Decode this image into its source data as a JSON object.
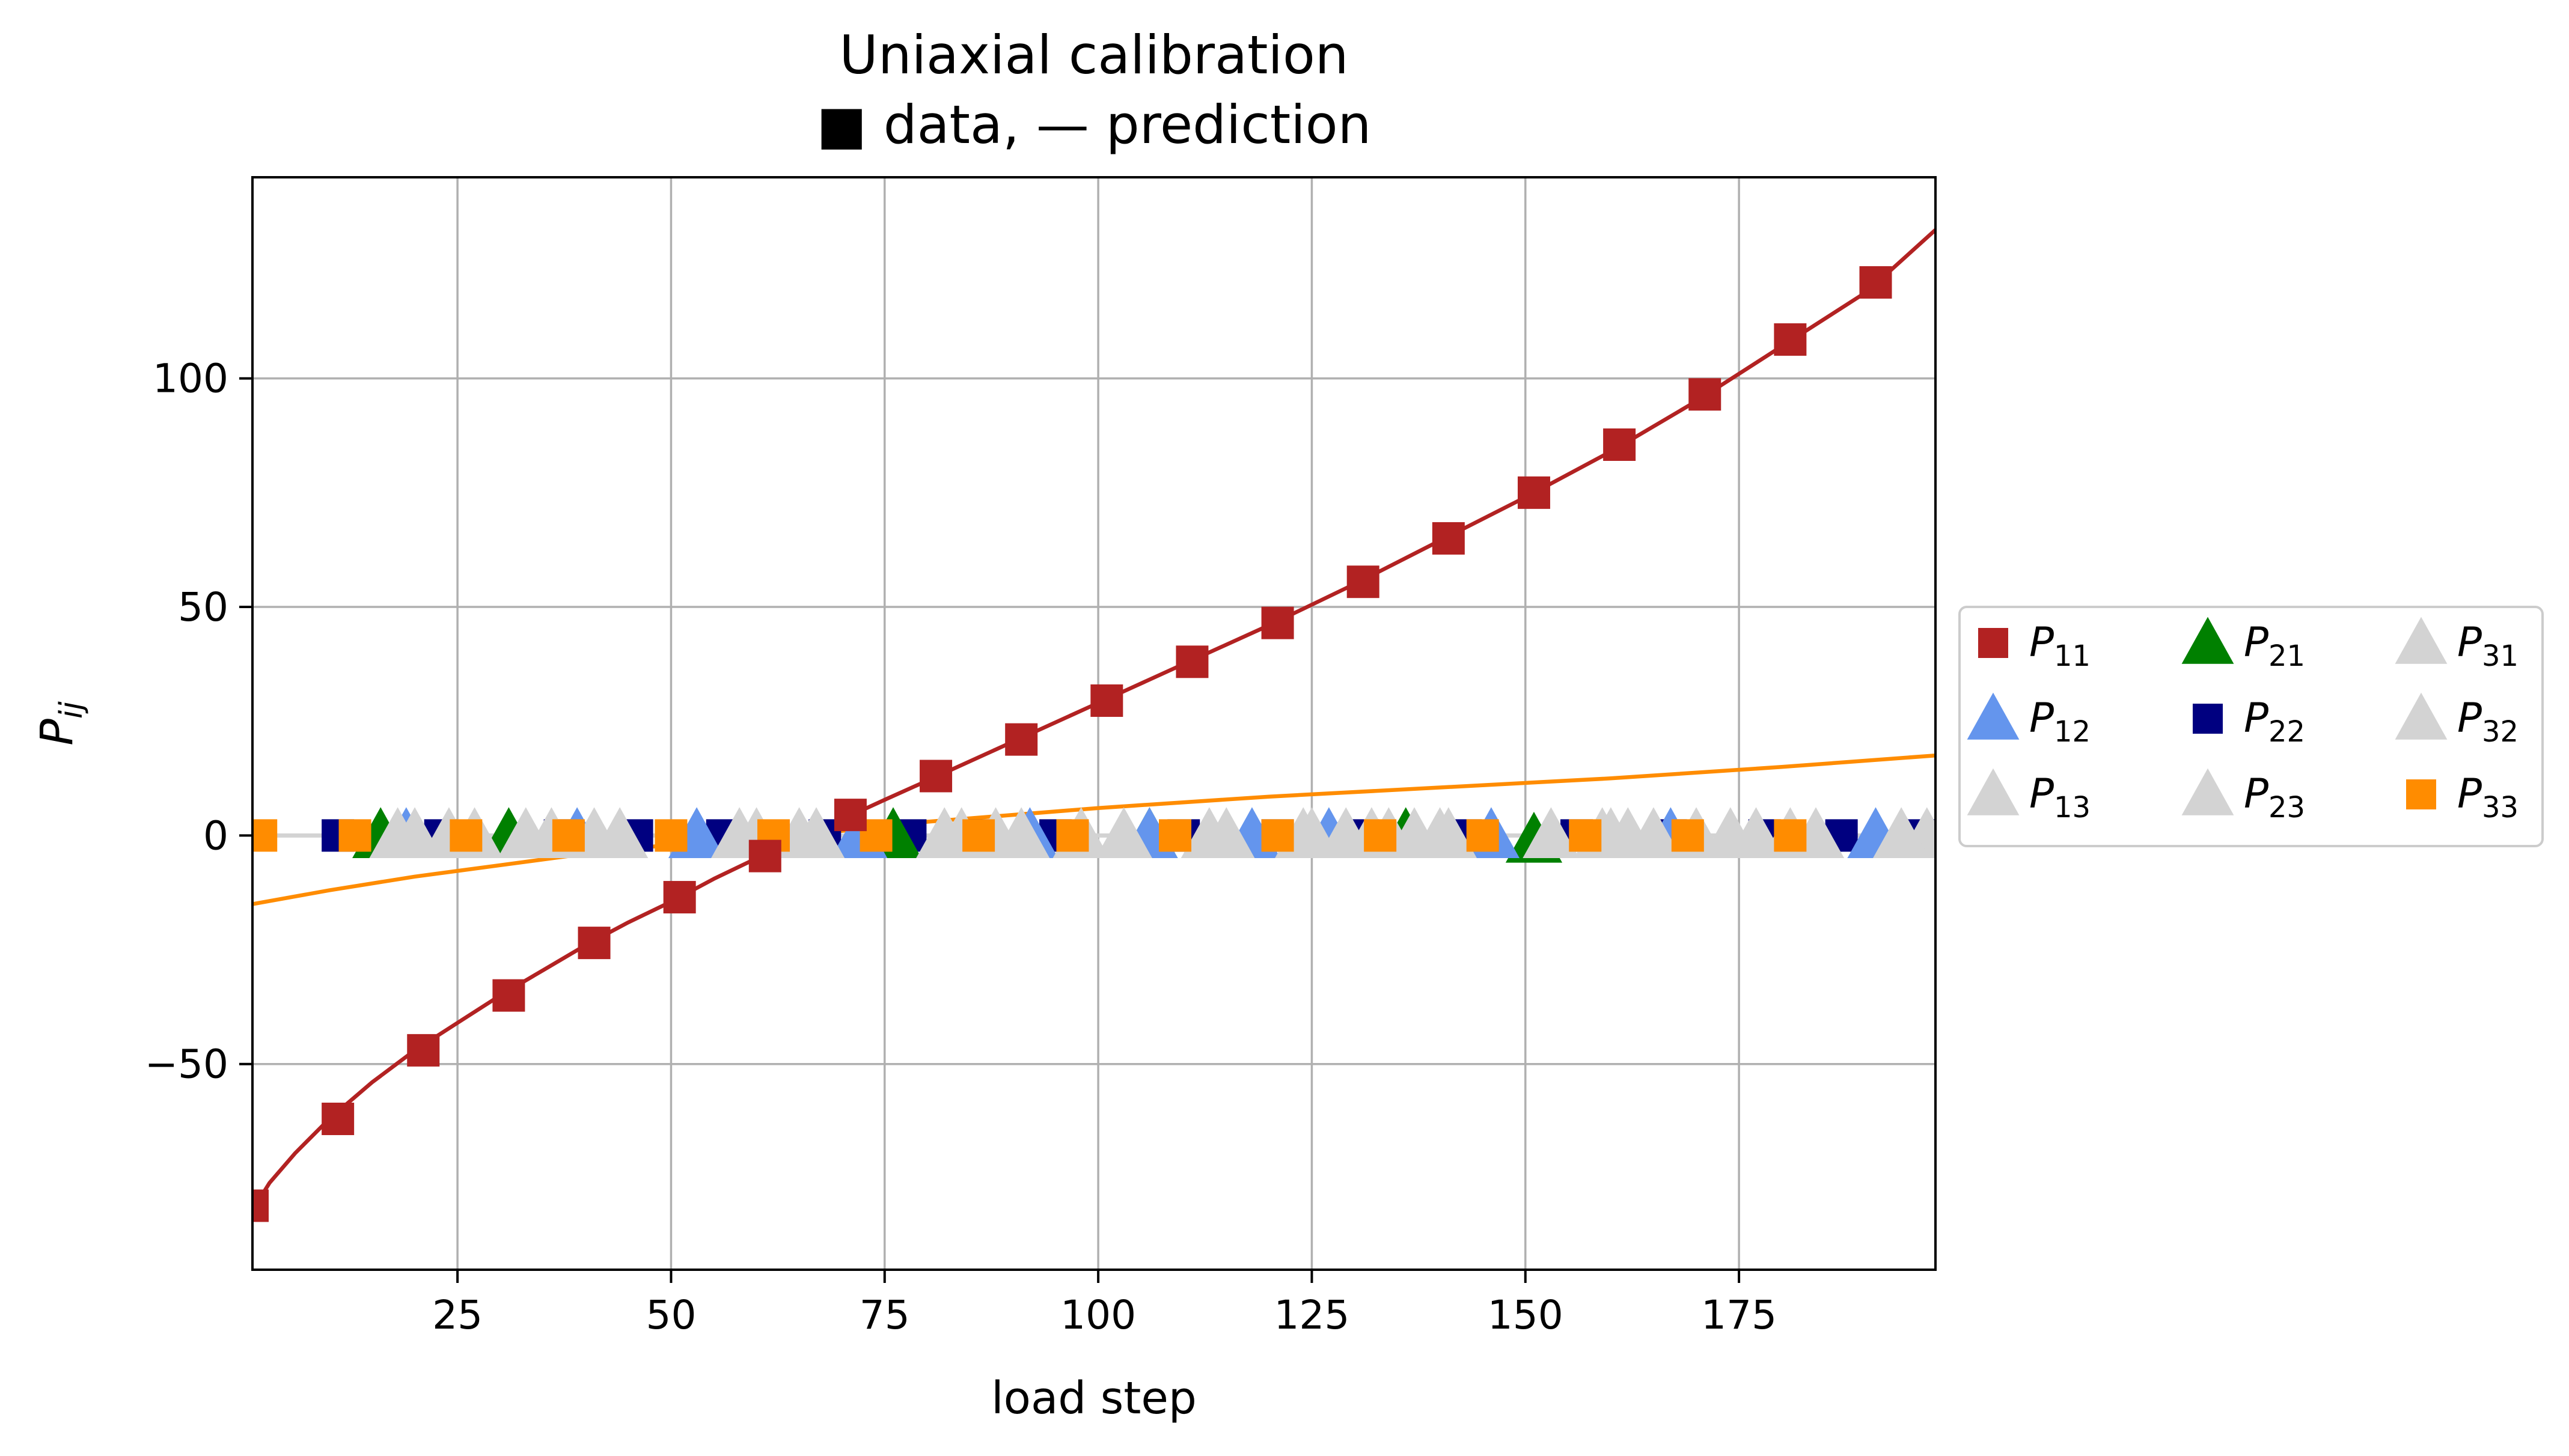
{
  "chart_data": {
    "type": "scatter",
    "title": "Uniaxial calibration",
    "subtitle": "■ data, — prediction",
    "xlabel": "load step",
    "ylabel_base": "P",
    "ylabel_sub": "ij",
    "xlim": [
      1,
      198
    ],
    "ylim": [
      -95,
      144
    ],
    "xticks": [
      25,
      50,
      75,
      100,
      125,
      150,
      175
    ],
    "yticks": [
      -50,
      0,
      50,
      100
    ],
    "xtick_labels": [
      "25",
      "50",
      "75",
      "100",
      "125",
      "150",
      "175"
    ],
    "ytick_labels": [
      "−50",
      "0",
      "50",
      "100"
    ],
    "grid": true,
    "legend_placement": "right",
    "series": [
      {
        "id": "p11",
        "base": "P",
        "sub": "11",
        "marker": "square",
        "color": "#b22222",
        "x": [
          1,
          11,
          21,
          31,
          41,
          51,
          61,
          71,
          81,
          91,
          101,
          111,
          121,
          131,
          141,
          151,
          161,
          171,
          181,
          191
        ],
        "y": [
          -81,
          -62,
          -47,
          -35,
          -23.5,
          -13.5,
          -4.5,
          4.5,
          13,
          21,
          29.5,
          38,
          46.5,
          55.5,
          65,
          75,
          85.5,
          96.5,
          108.5,
          121
        ]
      },
      {
        "id": "p12",
        "base": "P",
        "sub": "12",
        "marker": "triangle-up",
        "color": "#6495ed",
        "x": [
          19,
          39,
          53,
          72,
          92,
          106,
          118,
          127,
          146,
          167,
          191
        ],
        "y": [
          0,
          0,
          0,
          0,
          0,
          0,
          0,
          0,
          0,
          0,
          0
        ]
      },
      {
        "id": "p13",
        "base": "P",
        "sub": "13",
        "marker": "triangle-up",
        "color": "#d3d3d3",
        "x": [
          24,
          36,
          60,
          82,
          103,
          124,
          132,
          140,
          162,
          177,
          194
        ],
        "y": [
          0,
          0,
          0,
          0,
          0,
          0,
          0,
          0,
          0,
          0,
          0
        ]
      },
      {
        "id": "p21",
        "base": "P",
        "sub": "21",
        "marker": "triangle-up",
        "color": "#008000",
        "x": [
          16,
          31,
          76,
          106,
          136,
          151
        ],
        "y": [
          0,
          0,
          0,
          0,
          0,
          -1
        ]
      },
      {
        "id": "p22",
        "base": "P",
        "sub": "22",
        "marker": "square",
        "color": "#000080",
        "x": [
          11,
          23,
          37,
          46,
          56,
          68,
          78,
          86,
          95,
          110,
          121,
          131,
          143,
          156,
          167,
          178,
          187,
          196
        ],
        "y": [
          0,
          0,
          0,
          0,
          0,
          0,
          0,
          0,
          0,
          0,
          0,
          0,
          0,
          0,
          0,
          0,
          0,
          0
        ]
      },
      {
        "id": "p23",
        "base": "P",
        "sub": "23",
        "marker": "triangle-up",
        "color": "#d3d3d3",
        "x": [
          27,
          41,
          65,
          88,
          113,
          129,
          137,
          159,
          170,
          184
        ],
        "y": [
          0,
          0,
          0,
          0,
          0,
          0,
          0,
          0,
          0,
          0
        ]
      },
      {
        "id": "p31",
        "base": "P",
        "sub": "31",
        "marker": "triangle-up",
        "color": "#d3d3d3",
        "x": [
          18,
          44,
          67,
          91,
          115,
          134,
          153,
          165,
          181,
          197
        ],
        "y": [
          0,
          0,
          0,
          0,
          0,
          0,
          0,
          0,
          0,
          0
        ]
      },
      {
        "id": "p32",
        "base": "P",
        "sub": "32",
        "marker": "triangle-up",
        "color": "#d3d3d3",
        "x": [
          20,
          33,
          58,
          84,
          98,
          125,
          141,
          160,
          174
        ],
        "y": [
          0,
          0,
          0,
          0,
          0,
          0,
          0,
          0,
          0
        ]
      },
      {
        "id": "p33",
        "base": "P",
        "sub": "33",
        "marker": "square",
        "color": "#ff8c00",
        "x": [
          2,
          13,
          26,
          38,
          50,
          62,
          74,
          86,
          97,
          109,
          121,
          133,
          145,
          157,
          169,
          181
        ],
        "y": [
          0,
          0,
          0,
          0,
          0,
          0,
          0,
          0,
          0,
          0,
          0,
          0,
          0,
          0,
          0,
          0
        ]
      }
    ],
    "prediction_lines": [
      {
        "id": "p11-prediction",
        "color": "#b22222",
        "x": [
          1,
          3,
          6,
          10,
          15,
          20,
          25,
          30,
          35,
          40,
          45,
          50,
          55,
          60,
          65,
          70,
          75,
          80,
          90,
          100,
          110,
          120,
          130,
          140,
          150,
          160,
          170,
          180,
          190,
          198
        ],
        "y": [
          -82,
          -76,
          -69.5,
          -62,
          -54,
          -47,
          -41,
          -35,
          -29.5,
          -24,
          -19,
          -14.5,
          -9.5,
          -5,
          -0.8,
          3.5,
          7.8,
          12,
          20.5,
          29,
          37.5,
          46,
          55,
          64.5,
          74,
          84,
          95,
          107,
          119,
          132.5
        ]
      },
      {
        "id": "p33-prediction",
        "color": "#ff8c00",
        "x": [
          1,
          10,
          20,
          30,
          40,
          50,
          60,
          65,
          70,
          80,
          90,
          100,
          120,
          140,
          160,
          180,
          198
        ],
        "y": [
          -15,
          -12,
          -9,
          -6.5,
          -4,
          -2,
          -0.5,
          0,
          1,
          3,
          4.5,
          6,
          8.5,
          10.5,
          12.5,
          15,
          17.5
        ]
      },
      {
        "id": "zero-prediction",
        "color": "#d3d3d3",
        "x": [
          1,
          198
        ],
        "y": [
          0,
          0
        ]
      }
    ],
    "legend_order": [
      "p11",
      "p12",
      "p13",
      "p21",
      "p22",
      "p23",
      "p31",
      "p32",
      "p33"
    ]
  }
}
